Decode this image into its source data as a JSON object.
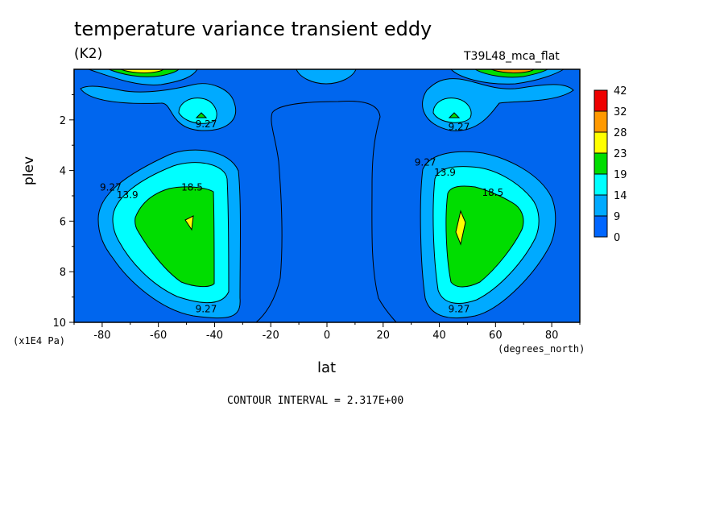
{
  "chart": {
    "title": "temperature variance transient eddy",
    "units": "(K2)",
    "dataset": "T39L48_mca_flat",
    "ylabel": "plev",
    "xlabel": "lat",
    "y_units": "(x1E4 Pa)",
    "x_units": "(degrees_north)",
    "footer": "CONTOUR INTERVAL = 2.317E+00"
  },
  "chart_data": {
    "type": "contour",
    "x_ticks": [
      -80,
      -60,
      -40,
      -20,
      0,
      20,
      40,
      60,
      80
    ],
    "x_tick_labels": [
      "-80",
      "-60",
      "-40",
      "-20",
      "0",
      "20",
      "40",
      "60",
      "80"
    ],
    "y_ticks": [
      2,
      4,
      6,
      8,
      10
    ],
    "y_tick_labels": [
      "2",
      "4",
      "6",
      "8",
      "10"
    ],
    "xlim": [
      -90,
      90
    ],
    "ylim": [
      10,
      0
    ],
    "contour_labels": [
      {
        "text": "9.27",
        "lat": -43,
        "plev": 2.3
      },
      {
        "text": "9.27",
        "lat": 47,
        "plev": 2.4
      },
      {
        "text": "9.27",
        "lat": -77,
        "plev": 4.8
      },
      {
        "text": "13.9",
        "lat": -71,
        "plev": 5.1
      },
      {
        "text": "18.5",
        "lat": -48,
        "plev": 4.8
      },
      {
        "text": "9.27",
        "lat": 35,
        "plev": 3.8
      },
      {
        "text": "13.9",
        "lat": 42,
        "plev": 4.2
      },
      {
        "text": "18.5",
        "lat": 59,
        "plev": 5.0
      },
      {
        "text": "9.27",
        "lat": -43,
        "plev": 9.6
      },
      {
        "text": "9.27",
        "lat": 47,
        "plev": 9.6
      }
    ],
    "colorbar": {
      "labels": [
        "42",
        "32",
        "28",
        "23",
        "19",
        "14",
        "9",
        "0"
      ],
      "colors": [
        "#ee0000",
        "#ff9900",
        "#ffff00",
        "#00dd00",
        "#00ffff",
        "#00aaff",
        "#0066ff",
        "#0044ff"
      ]
    },
    "regions": {
      "base": "#0066ee",
      "level1": "#00aaff",
      "level2": "#00ffff",
      "level3": "#00dd00",
      "level4": "#ffff00",
      "level5": "#ff9900"
    }
  }
}
